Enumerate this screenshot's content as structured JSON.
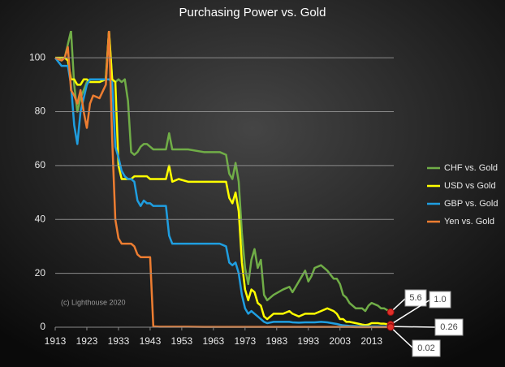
{
  "chart_data": {
    "type": "line",
    "title": "Purchasing Power vs. Gold",
    "annotation": "(c) Lighthouse 2020",
    "xlim": [
      1913,
      2020
    ],
    "xticks": [
      1913,
      1923,
      1933,
      1943,
      1953,
      1963,
      1973,
      1983,
      1993,
      2003,
      2013
    ],
    "ylim": [
      0,
      110
    ],
    "yticks": [
      0,
      20,
      40,
      60,
      80,
      100
    ],
    "grid": true,
    "legend": "right",
    "x": [
      1913,
      1915,
      1916,
      1917,
      1918,
      1919,
      1920,
      1921,
      1922,
      1923,
      1924,
      1925,
      1927,
      1929,
      1930,
      1931,
      1932,
      1933,
      1934,
      1935,
      1936,
      1937,
      1938,
      1939,
      1940,
      1941,
      1942,
      1943,
      1944,
      1946,
      1948,
      1949,
      1950,
      1952,
      1955,
      1960,
      1965,
      1967,
      1968,
      1969,
      1970,
      1971,
      1972,
      1973,
      1974,
      1975,
      1976,
      1977,
      1978,
      1979,
      1980,
      1982,
      1985,
      1987,
      1988,
      1990,
      1992,
      1993,
      1994,
      1995,
      1997,
      1999,
      2001,
      2002,
      2003,
      2004,
      2005,
      2006,
      2008,
      2010,
      2011,
      2012,
      2013,
      2015,
      2016,
      2017,
      2019
    ],
    "series": [
      {
        "name": "CHF vs. Gold",
        "color": "#70ad47",
        "end_label": "5.6",
        "values": [
          100,
          99,
          100,
          105,
          110,
          90,
          80,
          85,
          88,
          91,
          92,
          92,
          92,
          92,
          110,
          92,
          91,
          92,
          91,
          92,
          84,
          65,
          64,
          65,
          67,
          68,
          68,
          67,
          66,
          66,
          66,
          72,
          66,
          66,
          66,
          65,
          65,
          64,
          57,
          55,
          61,
          54,
          35,
          22,
          16,
          25,
          29,
          22,
          25,
          12,
          10,
          12,
          14,
          15,
          13,
          17,
          21,
          17,
          19,
          22,
          23,
          21,
          18,
          18,
          16,
          12,
          11,
          9,
          7,
          7,
          6,
          8,
          9,
          8,
          7,
          7,
          5.6
        ]
      },
      {
        "name": "USD vs Gold",
        "color": "#ffff00",
        "end_label": "1.0",
        "values": [
          100,
          100,
          100,
          99,
          92,
          92,
          90,
          90,
          92,
          92,
          91,
          91,
          91,
          92,
          110,
          92,
          91,
          60,
          55,
          55,
          55,
          55,
          56,
          56,
          56,
          56,
          56,
          55,
          55,
          55,
          55,
          60,
          54,
          55,
          54,
          54,
          54,
          54,
          48,
          46,
          50,
          43,
          24,
          14,
          10,
          14,
          13,
          9,
          8,
          4,
          3,
          5,
          5,
          6,
          5,
          4,
          5,
          5,
          5,
          5,
          6,
          7,
          6,
          5,
          3,
          3,
          2,
          2,
          1.5,
          1,
          0.8,
          1,
          1.5,
          1.5,
          1.3,
          1.3,
          1.0
        ]
      },
      {
        "name": "GBP vs. Gold",
        "color": "#1f9ee0",
        "end_label": "0.26",
        "values": [
          100,
          97,
          97,
          97,
          90,
          75,
          68,
          80,
          85,
          90,
          92,
          92,
          92,
          92,
          92,
          91,
          67,
          63,
          58,
          56,
          55,
          55,
          54,
          47,
          45,
          47,
          46,
          46,
          45,
          45,
          45,
          34,
          31,
          31,
          31,
          31,
          31,
          30,
          24,
          23,
          24,
          20,
          12,
          7,
          5,
          6,
          5,
          4,
          3,
          2,
          1.5,
          2,
          2,
          2,
          1.8,
          1.7,
          1.8,
          1.8,
          1.8,
          1.8,
          2,
          1.8,
          1.4,
          1.2,
          0.9,
          0.7,
          0.6,
          0.5,
          0.4,
          0.3,
          0.3,
          0.3,
          0.3,
          0.3,
          0.3,
          0.3,
          0.26
        ]
      },
      {
        "name": "Yen vs. Gold",
        "color": "#ed7d31",
        "end_label": "0.02",
        "values": [
          100,
          99,
          100,
          104,
          88,
          86,
          83,
          88,
          80,
          74,
          83,
          86,
          85,
          90,
          110,
          70,
          40,
          33,
          31,
          31,
          31,
          31,
          30,
          27,
          26,
          26,
          26,
          26,
          0.3,
          0.2,
          0.2,
          0.2,
          0.2,
          0.2,
          0.2,
          0.1,
          0.1,
          0.1,
          0.1,
          0.1,
          0.1,
          0.1,
          0.1,
          0.1,
          0.1,
          0.1,
          0.1,
          0.1,
          0.1,
          0.1,
          0.1,
          0.1,
          0.1,
          0.1,
          0.1,
          0.1,
          0.1,
          0.1,
          0.1,
          0.1,
          0.1,
          0.1,
          0.1,
          0.1,
          0.1,
          0.1,
          0.1,
          0.1,
          0.05,
          0.05,
          0.05,
          0.05,
          0.05,
          0.03,
          0.03,
          0.03,
          0.02
        ]
      }
    ]
  }
}
